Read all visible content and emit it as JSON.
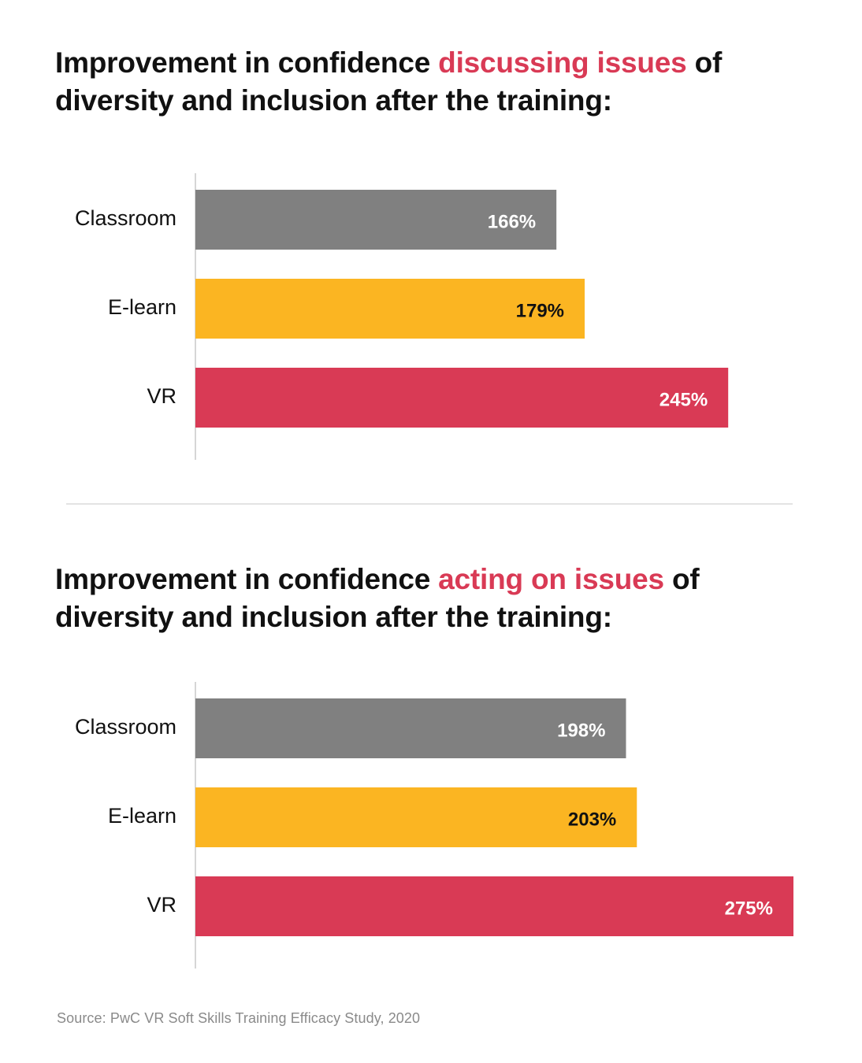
{
  "colors": {
    "highlight": "#d93a55",
    "classroom": "#808080",
    "elearn": "#fbb522",
    "vr": "#d93a55"
  },
  "charts": [
    {
      "title_pre": "Improvement in confidence ",
      "title_highlight": "discussing issues",
      "title_post": " of diversity and inclusion after the training:"
    },
    {
      "title_pre": "Improvement in confidence ",
      "title_highlight": "acting on issues",
      "title_post": " of diversity and inclusion after the training:"
    }
  ],
  "chart_data": [
    {
      "type": "bar",
      "orientation": "horizontal",
      "title": "Improvement in confidence discussing issues of diversity and inclusion after the training:",
      "categories": [
        "Classroom",
        "E-learn",
        "VR"
      ],
      "values": [
        166,
        179,
        245
      ],
      "value_labels": [
        "166%",
        "179%",
        "245%"
      ],
      "bar_colors": [
        "#808080",
        "#fbb522",
        "#d93a55"
      ],
      "label_colors": [
        "#ffffff",
        "#111111",
        "#ffffff"
      ],
      "xlim": [
        0,
        275
      ],
      "grid": false
    },
    {
      "type": "bar",
      "orientation": "horizontal",
      "title": "Improvement in confidence acting on issues of diversity and inclusion after the training:",
      "categories": [
        "Classroom",
        "E-learn",
        "VR"
      ],
      "values": [
        198,
        203,
        275
      ],
      "value_labels": [
        "198%",
        "203%",
        "275%"
      ],
      "bar_colors": [
        "#808080",
        "#fbb522",
        "#d93a55"
      ],
      "label_colors": [
        "#ffffff",
        "#111111",
        "#ffffff"
      ],
      "xlim": [
        0,
        275
      ],
      "grid": false
    }
  ],
  "source": "Source: PwC VR Soft Skills Training Efficacy Study, 2020"
}
